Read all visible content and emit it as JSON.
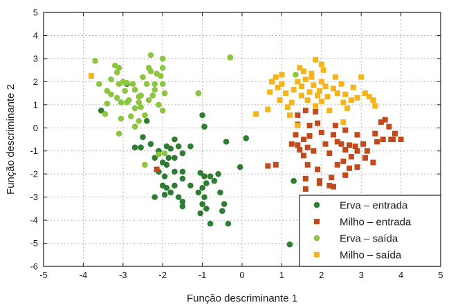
{
  "chart_data": {
    "type": "scatter",
    "title": "",
    "xlabel": "Função descriminante 1",
    "ylabel": "Função descriminante 2",
    "xlim": [
      -5,
      5
    ],
    "ylim": [
      -6,
      5
    ],
    "xticks": [
      "-5",
      "-4",
      "-3",
      "-2",
      "-1",
      "0",
      "1",
      "2",
      "3",
      "4",
      "5"
    ],
    "yticks": [
      "5",
      "4",
      "3",
      "2",
      "1",
      "0",
      "-1",
      "-2",
      "-3",
      "-4",
      "-5",
      "-6"
    ],
    "grid": true,
    "legend_position": "bottom-right",
    "series": [
      {
        "name": "Erva – entrada",
        "marker": "circle",
        "color": "#2e7d32",
        "points": [
          [
            -3.55,
            0.75
          ],
          [
            -2.5,
            -0.4
          ],
          [
            -2.3,
            -0.7
          ],
          [
            -2.7,
            -0.85
          ],
          [
            -2.55,
            -0.85
          ],
          [
            -2.1,
            -1.0
          ],
          [
            -1.9,
            -0.8
          ],
          [
            -1.7,
            -0.5
          ],
          [
            -1.8,
            -0.9
          ],
          [
            -1.6,
            -0.8
          ],
          [
            -1.3,
            -0.8
          ],
          [
            -2.2,
            -1.3
          ],
          [
            -2.1,
            -1.9
          ],
          [
            -2.0,
            -1.5
          ],
          [
            -1.85,
            -1.3
          ],
          [
            -1.9,
            -1.6
          ],
          [
            -1.7,
            -1.3
          ],
          [
            -1.5,
            -1.1
          ],
          [
            -1.95,
            -2.1
          ],
          [
            -1.7,
            -1.9
          ],
          [
            -1.5,
            -1.9
          ],
          [
            -2.0,
            -2.5
          ],
          [
            -1.9,
            -2.6
          ],
          [
            -1.7,
            -2.5
          ],
          [
            -1.5,
            -2.2
          ],
          [
            -1.8,
            -2.8
          ],
          [
            -1.95,
            -2.9
          ],
          [
            -2.2,
            -3.0
          ],
          [
            -1.6,
            -3.0
          ],
          [
            -1.5,
            -3.2
          ],
          [
            -1.5,
            -3.4
          ],
          [
            -1.3,
            -2.5
          ],
          [
            -1.05,
            -1.95
          ],
          [
            -0.95,
            -2.1
          ],
          [
            -0.8,
            -2.1
          ],
          [
            -0.9,
            -2.4
          ],
          [
            -1.0,
            -2.6
          ],
          [
            -1.1,
            -2.8
          ],
          [
            -0.95,
            -3.0
          ],
          [
            -1.0,
            -3.3
          ],
          [
            -0.7,
            -2.3
          ],
          [
            -0.6,
            -2.0
          ],
          [
            -0.55,
            -2.8
          ],
          [
            -0.45,
            -3.3
          ],
          [
            -0.5,
            -3.6
          ],
          [
            -0.9,
            -3.5
          ],
          [
            -1.05,
            -3.7
          ],
          [
            -0.8,
            -4.15
          ],
          [
            -0.35,
            -4.15
          ],
          [
            -0.4,
            -0.6
          ],
          [
            0.1,
            -0.45
          ],
          [
            -0.05,
            -1.7
          ],
          [
            -1.0,
            0.55
          ],
          [
            -0.95,
            0.05
          ],
          [
            -1.1,
            1.5
          ],
          [
            -0.3,
            3.05
          ],
          [
            1.3,
            -2.3
          ],
          [
            1.2,
            -5.05
          ],
          [
            -2.9,
            1.9
          ],
          [
            -2.4,
            0.3
          ]
        ]
      },
      {
        "name": "Milho – entrada",
        "marker": "square",
        "color": "#bf4a1e",
        "points": [
          [
            -2.15,
            -1.8
          ],
          [
            0.65,
            -1.65
          ],
          [
            0.85,
            -1.6
          ],
          [
            1.25,
            -0.7
          ],
          [
            1.4,
            -0.75
          ],
          [
            1.35,
            -0.3
          ],
          [
            1.4,
            0.15
          ],
          [
            1.4,
            0.55
          ],
          [
            1.6,
            0.75
          ],
          [
            1.7,
            0.1
          ],
          [
            1.85,
            0.7
          ],
          [
            1.9,
            0.2
          ],
          [
            2.0,
            -0.2
          ],
          [
            1.7,
            -0.35
          ],
          [
            1.55,
            -0.5
          ],
          [
            1.65,
            -0.85
          ],
          [
            1.45,
            -0.95
          ],
          [
            1.8,
            -1.0
          ],
          [
            1.55,
            -1.2
          ],
          [
            1.65,
            -1.6
          ],
          [
            1.9,
            -1.8
          ],
          [
            1.95,
            -2.3
          ],
          [
            1.6,
            -2.2
          ],
          [
            1.95,
            -2.4
          ],
          [
            2.2,
            -2.5
          ],
          [
            2.25,
            -2.15
          ],
          [
            2.4,
            -1.6
          ],
          [
            2.6,
            -2.05
          ],
          [
            2.7,
            -1.75
          ],
          [
            2.9,
            -1.7
          ],
          [
            2.55,
            -1.45
          ],
          [
            2.2,
            -1.1
          ],
          [
            2.1,
            -0.7
          ],
          [
            2.4,
            -0.6
          ],
          [
            2.7,
            -0.75
          ],
          [
            2.85,
            -0.8
          ],
          [
            2.9,
            -1.0
          ],
          [
            2.75,
            -1.25
          ],
          [
            2.6,
            -0.95
          ],
          [
            2.5,
            -0.7
          ],
          [
            2.3,
            -0.3
          ],
          [
            2.35,
            0.1
          ],
          [
            2.6,
            -0.1
          ],
          [
            2.9,
            -0.3
          ],
          [
            3.05,
            -0.7
          ],
          [
            3.15,
            -1.0
          ],
          [
            3.3,
            -1.5
          ],
          [
            3.1,
            -1.3
          ],
          [
            3.4,
            -0.6
          ],
          [
            3.5,
            0.25
          ],
          [
            3.6,
            0.35
          ],
          [
            3.55,
            -0.5
          ],
          [
            3.75,
            -0.5
          ],
          [
            3.8,
            -0.5
          ],
          [
            3.85,
            -0.25
          ],
          [
            4.0,
            -0.5
          ],
          [
            3.35,
            -0.25
          ],
          [
            3.7,
            0.05
          ],
          [
            2.3,
            -2.55
          ],
          [
            1.6,
            -2.65
          ]
        ]
      },
      {
        "name": "Erva – saída",
        "marker": "circle",
        "color": "#8cc63f",
        "points": [
          [
            -3.7,
            2.9
          ],
          [
            -3.6,
            1.9
          ],
          [
            -3.4,
            1.6
          ],
          [
            -3.3,
            2.1
          ],
          [
            -3.2,
            2.7
          ],
          [
            -3.15,
            2.4
          ],
          [
            -3.1,
            1.9
          ],
          [
            -3.0,
            2.0
          ],
          [
            -2.95,
            1.6
          ],
          [
            -3.15,
            1.3
          ],
          [
            -3.05,
            1.1
          ],
          [
            -2.9,
            1.95
          ],
          [
            -2.85,
            1.2
          ],
          [
            -2.75,
            1.9
          ],
          [
            -2.7,
            1.65
          ],
          [
            -2.6,
            1.35
          ],
          [
            -2.6,
            1.1
          ],
          [
            -2.4,
            1.9
          ],
          [
            -2.5,
            2.2
          ],
          [
            -2.3,
            2.45
          ],
          [
            -2.15,
            2.35
          ],
          [
            -2.35,
            2.6
          ],
          [
            -2.3,
            3.15
          ],
          [
            -2.0,
            2.6
          ],
          [
            -2.05,
            2.25
          ],
          [
            -2.0,
            1.9
          ],
          [
            -1.95,
            1.5
          ],
          [
            -2.2,
            1.65
          ],
          [
            -2.35,
            1.2
          ],
          [
            -2.1,
            1.0
          ],
          [
            -2.0,
            0.75
          ],
          [
            -2.55,
            0.9
          ],
          [
            -2.7,
            0.85
          ],
          [
            -2.45,
            0.55
          ],
          [
            -2.8,
            0.5
          ],
          [
            -2.6,
            0.3
          ],
          [
            -2.7,
            0.05
          ],
          [
            -3.05,
            0.4
          ],
          [
            -3.1,
            -0.25
          ],
          [
            -3.1,
            2.6
          ],
          [
            -3.3,
            1.45
          ],
          [
            -3.4,
            1.05
          ],
          [
            -3.45,
            0.6
          ],
          [
            -2.9,
            1.1
          ],
          [
            -2.55,
            1.4
          ],
          [
            -2.2,
            1.9
          ],
          [
            -2.0,
            3.0
          ],
          [
            -1.95,
            -1.1
          ],
          [
            -2.1,
            -1.15
          ],
          [
            -2.45,
            -1.6
          ],
          [
            -1.1,
            1.5
          ],
          [
            -0.3,
            3.05
          ],
          [
            1.35,
            2.3
          ],
          [
            -2.25,
            1.4
          ]
        ]
      },
      {
        "name": "Milho – saída",
        "marker": "square",
        "color": "#f5b41b",
        "points": [
          [
            -3.8,
            2.25
          ],
          [
            0.35,
            0.6
          ],
          [
            0.65,
            0.8
          ],
          [
            0.7,
            1.55
          ],
          [
            0.75,
            2.0
          ],
          [
            0.85,
            2.2
          ],
          [
            0.9,
            1.75
          ],
          [
            1.0,
            1.9
          ],
          [
            1.0,
            2.3
          ],
          [
            0.95,
            1.2
          ],
          [
            1.1,
            1.5
          ],
          [
            1.15,
            0.9
          ],
          [
            1.25,
            1.1
          ],
          [
            1.3,
            1.65
          ],
          [
            1.4,
            2.0
          ],
          [
            1.5,
            1.8
          ],
          [
            1.5,
            1.4
          ],
          [
            1.55,
            2.45
          ],
          [
            1.6,
            2.1
          ],
          [
            1.65,
            1.2
          ],
          [
            1.7,
            1.55
          ],
          [
            1.75,
            2.2
          ],
          [
            1.8,
            1.85
          ],
          [
            1.85,
            0.95
          ],
          [
            1.9,
            1.4
          ],
          [
            1.95,
            1.6
          ],
          [
            2.0,
            1.15
          ],
          [
            2.05,
            2.5
          ],
          [
            2.0,
            2.0
          ],
          [
            1.85,
            2.95
          ],
          [
            2.1,
            1.8
          ],
          [
            2.15,
            1.35
          ],
          [
            2.2,
            0.75
          ],
          [
            2.3,
            1.7
          ],
          [
            2.35,
            2.2
          ],
          [
            2.4,
            1.5
          ],
          [
            2.5,
            1.9
          ],
          [
            2.55,
            1.1
          ],
          [
            2.6,
            1.45
          ],
          [
            2.65,
            0.85
          ],
          [
            2.75,
            1.2
          ],
          [
            2.8,
            1.75
          ],
          [
            2.9,
            1.3
          ],
          [
            3.0,
            2.2
          ],
          [
            3.1,
            1.5
          ],
          [
            3.3,
            1.2
          ],
          [
            3.35,
            0.95
          ],
          [
            1.4,
            0.1
          ],
          [
            1.2,
            0.55
          ],
          [
            2.0,
            2.75
          ],
          [
            1.45,
            2.6
          ],
          [
            3.2,
            1.35
          ],
          [
            2.55,
            0.25
          ],
          [
            1.75,
            2.35
          ]
        ]
      }
    ]
  }
}
